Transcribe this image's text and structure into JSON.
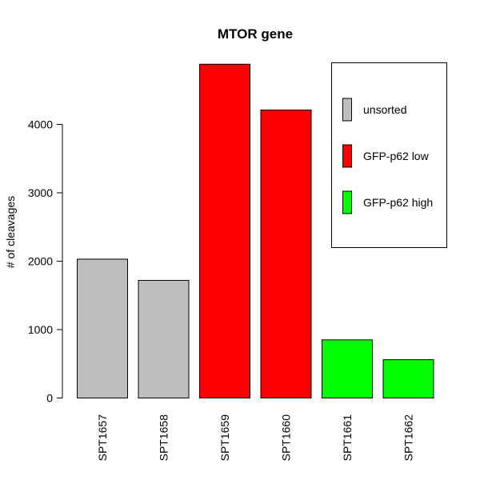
{
  "chart_data": {
    "type": "bar",
    "title": "MTOR gene",
    "xlabel": "",
    "ylabel": "# of cleavages",
    "ylim": [
      0,
      4900
    ],
    "yticks": [
      0,
      1000,
      2000,
      3000,
      4000
    ],
    "ytick_labels": [
      "0",
      "1000",
      "2000",
      "3000",
      "4000"
    ],
    "categories": [
      "SPT1657",
      "SPT1658",
      "SPT1659",
      "SPT1660",
      "SPT1661",
      "SPT1662"
    ],
    "values": [
      2030,
      1720,
      4880,
      4210,
      850,
      560
    ],
    "bar_colors": [
      "#bebebe",
      "#bebebe",
      "#ff0000",
      "#ff0000",
      "#00ff00",
      "#00ff00"
    ],
    "x_tick_label_orientation": "vertical",
    "grid": false,
    "legend": {
      "placement": "top-right",
      "entries": [
        {
          "label": "unsorted",
          "color": "#bebebe"
        },
        {
          "label": "GFP-p62 low",
          "color": "#ff0000"
        },
        {
          "label": "GFP-p62 high",
          "color": "#00ff00"
        }
      ]
    }
  }
}
